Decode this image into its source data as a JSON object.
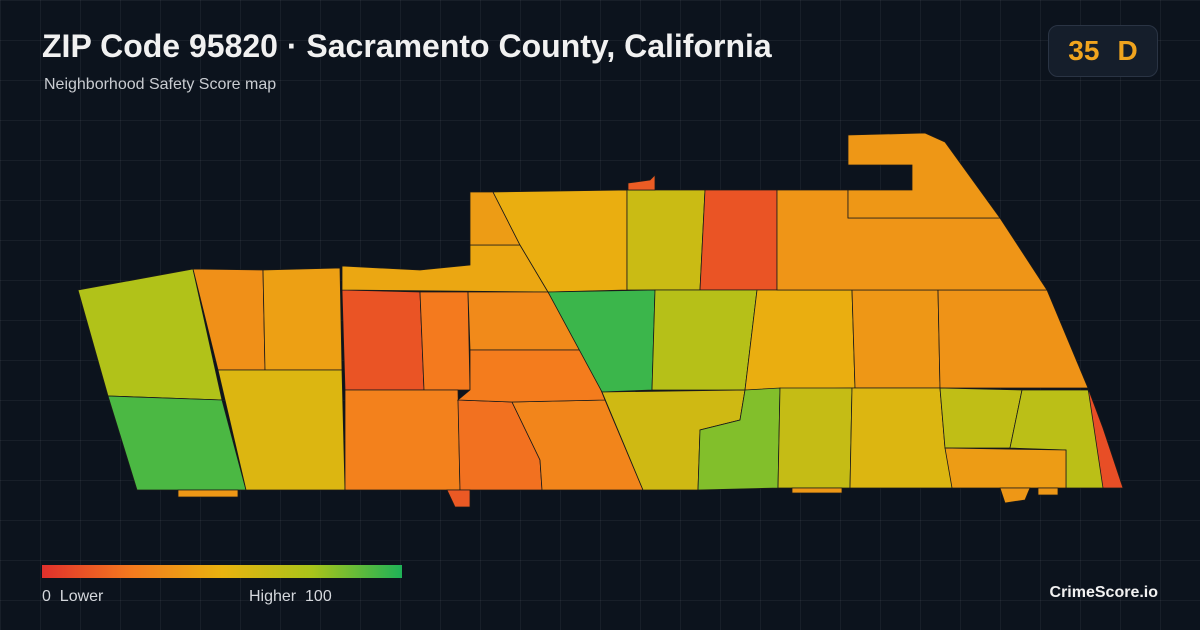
{
  "header": {
    "title": "ZIP Code 95820 · Sacramento County, California",
    "subtitle": "Neighborhood Safety Score map"
  },
  "badge": {
    "score": "35",
    "grade": "D"
  },
  "legend": {
    "min": "0",
    "min_label": "Lower",
    "max_label": "Higher",
    "max": "100",
    "colors": [
      "#e0302c",
      "#f47a1e",
      "#e9b20f",
      "#a9c41a",
      "#1fb257"
    ]
  },
  "regions": [
    72,
    92,
    35,
    42,
    55,
    12,
    25,
    28,
    22,
    30,
    45,
    40,
    48,
    32,
    26,
    62,
    12,
    95,
    70,
    48,
    38,
    36,
    37,
    38,
    60,
    82,
    64,
    55,
    66,
    68,
    40,
    10,
    15,
    38,
    14,
    38,
    38,
    38
  ],
  "brand": "CrimeScore.io"
}
